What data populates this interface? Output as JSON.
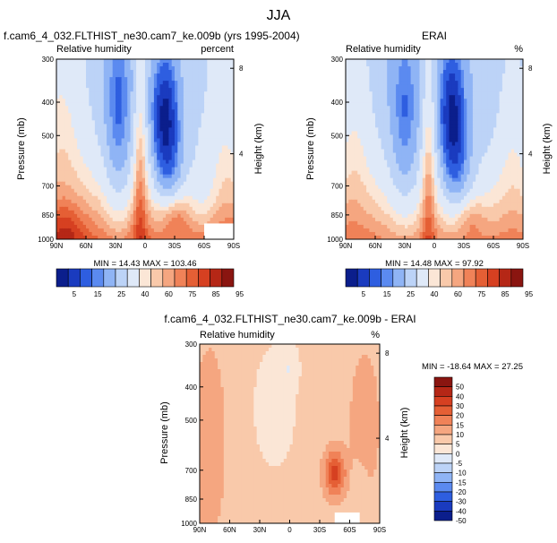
{
  "figure": {
    "title": "JJA",
    "panels": [
      {
        "id": "model",
        "title": "f.cam6_4_032.FLTHIST_ne30.cam7_ke.009b (yrs 1995-2004)",
        "field_label": "Relative humidity",
        "unit_label": "percent",
        "ylabel": "Pressure (mb)",
        "ylabel_right": "Height (km)",
        "stats": "MIN = 14.43 MAX = 103.46",
        "missing_region": {
          "x_from": "60S",
          "x_to": "90S",
          "p_from": 900,
          "p_to": 1000
        }
      },
      {
        "id": "obs",
        "title": "ERAI",
        "field_label": "Relative humidity",
        "unit_label": "%",
        "ylabel": "Pressure (mb)",
        "ylabel_right": "Height (km)",
        "stats": "MIN = 14.48 MAX = 97.92"
      },
      {
        "id": "diff",
        "title": "f.cam6_4_032.FLTHIST_ne30.cam7_ke.009b - ERAI",
        "field_label": "Relative humidity",
        "unit_label": "%",
        "ylabel": "Pressure (mb)",
        "ylabel_right": "Height (km)",
        "stats": "MIN = -18.64 MAX = 27.25",
        "missing_region": {
          "x_from": "45S",
          "x_to": "70S",
          "p_from": 930,
          "p_to": 1000
        }
      }
    ]
  },
  "chart_data": [
    {
      "type": "heatmap",
      "title": "f.cam6_4_032.FLTHIST_ne30.cam7_ke.009b (yrs 1995-2004)",
      "variable": "Relative humidity",
      "unit": "percent",
      "x_ticks": [
        "90N",
        "60N",
        "30N",
        "0",
        "30S",
        "60S",
        "90S"
      ],
      "y_ticks": [
        300,
        400,
        500,
        700,
        850,
        1000
      ],
      "y_right_ticks": [
        8,
        4
      ],
      "ylabel": "Pressure (mb)",
      "ylabel_right": "Height (km)",
      "y_scale": "log-pressure",
      "ylim": [
        1000,
        300
      ],
      "colorbar_labels": [
        "5",
        "15",
        "25",
        "40",
        "60",
        "75",
        "85",
        "95"
      ],
      "min": 14.43,
      "max": 103.46,
      "features": [
        {
          "desc": "dry minimum NH subtropics",
          "lat": 25,
          "p": 450,
          "rh": 25
        },
        {
          "desc": "dry minimum SH subtropics",
          "lat": -20,
          "p": 420,
          "rh": 15
        },
        {
          "desc": "moist equatorial column",
          "lat": 8,
          "p": 500,
          "rh": 70
        },
        {
          "desc": "moist boundary layer",
          "p": 900,
          "rh": 85
        }
      ]
    },
    {
      "type": "heatmap",
      "title": "ERAI",
      "variable": "Relative humidity",
      "unit": "%",
      "x_ticks": [
        "90N",
        "60N",
        "30N",
        "0",
        "30S",
        "60S",
        "90S"
      ],
      "y_ticks": [
        300,
        400,
        500,
        700,
        850,
        1000
      ],
      "y_right_ticks": [
        8,
        4
      ],
      "ylabel": "Pressure (mb)",
      "ylabel_right": "Height (km)",
      "y_scale": "log-pressure",
      "ylim": [
        1000,
        300
      ],
      "colorbar_labels": [
        "5",
        "15",
        "25",
        "40",
        "60",
        "75",
        "85",
        "95"
      ],
      "min": 14.48,
      "max": 97.92,
      "features": [
        {
          "desc": "dry minimum NH subtropics",
          "lat": 28,
          "p": 480,
          "rh": 30
        },
        {
          "desc": "dry minimum SH subtropics",
          "lat": -18,
          "p": 450,
          "rh": 15
        },
        {
          "desc": "moist boundary layer",
          "p": 900,
          "rh": 80
        }
      ]
    },
    {
      "type": "heatmap",
      "title": "f.cam6_4_032.FLTHIST_ne30.cam7_ke.009b - ERAI",
      "variable": "Relative humidity",
      "unit": "%",
      "x_ticks": [
        "90N",
        "60N",
        "30N",
        "0",
        "30S",
        "60S",
        "90S"
      ],
      "y_ticks": [
        300,
        400,
        500,
        700,
        850,
        1000
      ],
      "y_right_ticks": [
        8,
        4
      ],
      "ylabel": "Pressure (mb)",
      "ylabel_right": "Height (km)",
      "y_scale": "log-pressure",
      "ylim": [
        1000,
        300
      ],
      "colorbar_labels": [
        "50",
        "40",
        "30",
        "20",
        "15",
        "10",
        "5",
        "0",
        "-5",
        "-10",
        "-15",
        "-20",
        "-30",
        "-40",
        "-50"
      ],
      "min": -18.64,
      "max": 27.25,
      "features": [
        {
          "desc": "positive bias SH subtropical lower troposphere",
          "lat": -45,
          "p": 780,
          "diff": 20
        },
        {
          "desc": "negative bias tropical mid troposphere",
          "lat": 15,
          "p": 450,
          "diff": -5
        }
      ]
    }
  ],
  "colormaps": {
    "rh": [
      "#0b1e8c",
      "#1a3bbf",
      "#2e5ee0",
      "#5b8af0",
      "#8fb4f5",
      "#bcd3f7",
      "#dfe9f8",
      "#fbe6d6",
      "#f9c9aa",
      "#f5a680",
      "#f08258",
      "#e55f35",
      "#d64021",
      "#b52716",
      "#8a1510"
    ],
    "diff": [
      "#8a1510",
      "#b52716",
      "#d64021",
      "#e55f35",
      "#f08258",
      "#f5a680",
      "#f9c9aa",
      "#fbe6d6",
      "#dfe9f8",
      "#bcd3f7",
      "#8fb4f5",
      "#5b8af0",
      "#2e5ee0",
      "#1a3bbf",
      "#0b1e8c"
    ]
  }
}
